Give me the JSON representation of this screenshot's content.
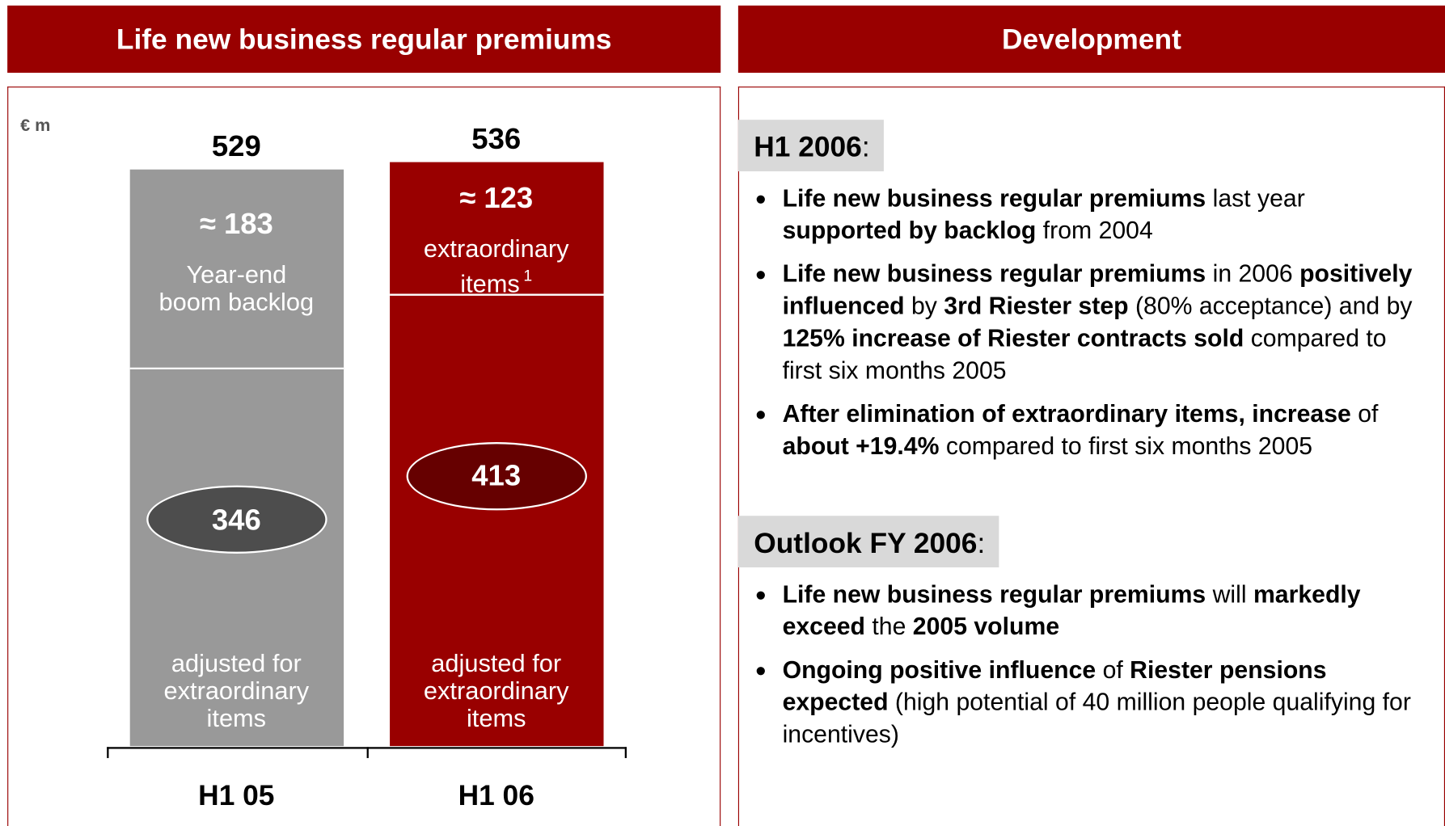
{
  "left_header": "Life new business regular premiums",
  "right_header": "Development",
  "chart_data": {
    "type": "stacked_bar",
    "unit": "€ m",
    "categories": [
      "H1 05",
      "H1 06"
    ],
    "bar_colors": [
      "#999999",
      "#990000"
    ],
    "ellipse_colors": [
      "#4d4d4d",
      "#660000"
    ],
    "totals": [
      529,
      536
    ],
    "series": [
      {
        "name": "adjusted for extraordinary items",
        "values": [
          346,
          413
        ]
      },
      {
        "name": "Year-end boom backlog",
        "values": [
          183,
          null
        ],
        "value_labels": [
          "≈ 183",
          null
        ]
      },
      {
        "name": "extraordinary items",
        "footnote": "1",
        "values": [
          null,
          123
        ],
        "value_labels": [
          null,
          "≈ 123"
        ]
      }
    ]
  },
  "right_panel": {
    "sections": [
      {
        "heading": "H1 2006",
        "heading_suffix": ":",
        "bullets": [
          [
            {
              "text": "Life new business regular premiums",
              "bold": true
            },
            {
              "text": " last year "
            },
            {
              "text": "supported by backlog",
              "bold": true
            },
            {
              "text": " from 2004"
            }
          ],
          [
            {
              "text": "Life new business regular premiums",
              "bold": true
            },
            {
              "text": " in 2006 "
            },
            {
              "text": "positively influenced",
              "bold": true
            },
            {
              "text": " by "
            },
            {
              "text": "3rd Riester step",
              "bold": true
            },
            {
              "text": " (80% acceptance) and by "
            },
            {
              "text": "125% increase of Riester contracts sold",
              "bold": true
            },
            {
              "text": " compared to first six months 2005"
            }
          ],
          [
            {
              "text": "After elimination of extraordinary items, increase",
              "bold": true
            },
            {
              "text": " of "
            },
            {
              "text": "about +19.4%",
              "bold": true
            },
            {
              "text": " compared to first six months 2005"
            }
          ]
        ]
      },
      {
        "heading": "Outlook FY 2006",
        "heading_suffix": ":",
        "bullets": [
          [
            {
              "text": "Life new business regular premiums",
              "bold": true
            },
            {
              "text": " will "
            },
            {
              "text": "markedly exceed",
              "bold": true
            },
            {
              "text": " the "
            },
            {
              "text": "2005 volume",
              "bold": true
            }
          ],
          [
            {
              "text": "Ongoing positive influence",
              "bold": true
            },
            {
              "text": " of "
            },
            {
              "text": "Riester pensions expected",
              "bold": true
            },
            {
              "text": " (high potential of 40 million people qualifying for incentives)"
            }
          ]
        ]
      }
    ]
  }
}
